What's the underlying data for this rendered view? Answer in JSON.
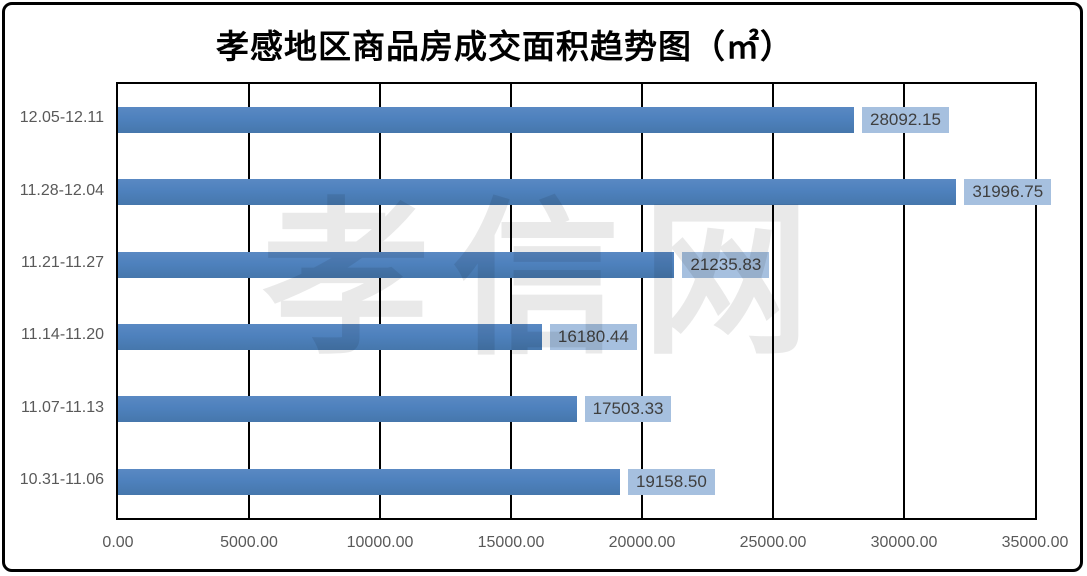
{
  "title": "孝感地区商品房成交面积趋势图（㎡）",
  "watermark": "孝信网",
  "colors": {
    "bar": "#4E81BD",
    "value_box_bg": "#A6C0DF",
    "value_text": "#3F3F3F",
    "axis_text": "#595959",
    "gridline": "#000000",
    "border": "#000000"
  },
  "chart_data": {
    "type": "bar",
    "orientation": "horizontal",
    "title": "孝感地区商品房成交面积趋势图（㎡）",
    "categories": [
      "12.05-12.11",
      "11.28-12.04",
      "11.21-11.27",
      "11.14-11.20",
      "11.07-11.13",
      "10.31-11.06"
    ],
    "values": [
      28092.15,
      31996.75,
      21235.83,
      16180.44,
      17503.33,
      19158.5
    ],
    "value_labels": [
      "28092.15",
      "31996.75",
      "21235.83",
      "16180.44",
      "17503.33",
      "19158.50"
    ],
    "xlim": [
      0,
      35000
    ],
    "x_tick_values": [
      0,
      5000,
      10000,
      15000,
      20000,
      25000,
      30000,
      35000
    ],
    "x_tick_labels": [
      "0.00",
      "5000.00",
      "10000.00",
      "15000.00",
      "20000.00",
      "25000.00",
      "30000.00",
      "35000.00"
    ],
    "grid": "vertical-only",
    "legend": "none",
    "unit": "㎡"
  }
}
